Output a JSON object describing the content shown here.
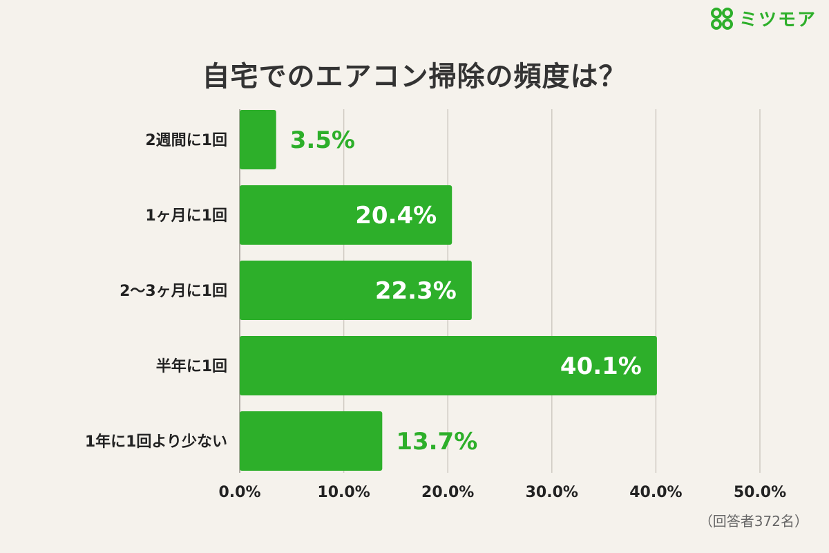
{
  "brand": {
    "name": "ミツモア",
    "color": "#2daf2a"
  },
  "chart_data": {
    "type": "bar",
    "orientation": "horizontal",
    "title": "自宅でのエアコン掃除の頻度は？",
    "categories": [
      "2週間に1回",
      "1ヶ月に1回",
      "2〜3ヶ月に1回",
      "半年に1回",
      "1年に1回より少ない"
    ],
    "values": [
      3.5,
      20.4,
      22.3,
      40.1,
      13.7
    ],
    "value_labels": [
      "3.5%",
      "20.4%",
      "22.3%",
      "40.1%",
      "13.7%"
    ],
    "xlim": [
      0,
      50
    ],
    "ticks": [
      0,
      10,
      20,
      30,
      40,
      50
    ],
    "tick_labels": [
      "0.0%",
      "10.0%",
      "20.0%",
      "30.0%",
      "40.0%",
      "50.0%"
    ],
    "grid": true,
    "bar_color": "#2daf2a",
    "note": "（回答者372名）"
  }
}
